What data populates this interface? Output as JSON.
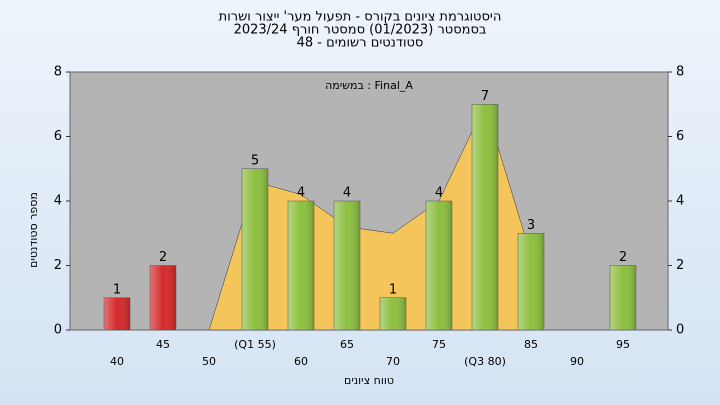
{
  "chart_data": {
    "type": "bar",
    "title": [
      "היסטוגרמת ציונים בקורס - תפעול מער' ייצור ושרות",
      "בסמסטר  (01/2023)  סמסטר חורף 2023/24",
      "סטודנטים רשומים - 48"
    ],
    "annotation": "במשימה : Final_A",
    "x_label": "טווח ציונים",
    "y_label": "מספר סטודנטים",
    "categories": [
      "40",
      "45",
      "50",
      "(Q1 55)",
      "60",
      "65",
      "70",
      "75",
      "(Q3 80)",
      "85",
      "90",
      "95"
    ],
    "values": [
      1,
      2,
      0,
      5,
      4,
      4,
      1,
      4,
      7,
      3,
      0,
      2
    ],
    "colors": [
      "#d42a2a",
      "#d42a2a",
      "#8cbf3f",
      "#8cbf3f",
      "#8cbf3f",
      "#8cbf3f",
      "#8cbf3f",
      "#8cbf3f",
      "#8cbf3f",
      "#8cbf3f",
      "#8cbf3f",
      "#8cbf3f"
    ],
    "area_values": [
      null,
      null,
      0,
      4.6,
      4.2,
      3.2,
      3,
      4,
      7,
      2.3,
      null,
      null
    ],
    "area_color": "#ffc84a",
    "ylim": [
      0,
      8
    ],
    "yticks": [
      0,
      2,
      4,
      6,
      8
    ],
    "y2lim": [
      0,
      8
    ],
    "y2ticks": [
      0,
      2,
      4,
      6,
      8
    ]
  }
}
